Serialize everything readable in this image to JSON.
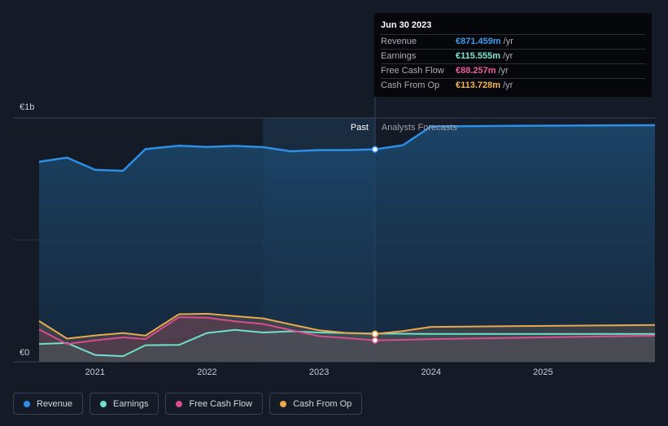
{
  "tooltip": {
    "date": "Jun 30 2023",
    "rows": [
      {
        "label": "Revenue",
        "value": "€871.459m",
        "unit": "/yr",
        "color": "#3b9ded"
      },
      {
        "label": "Earnings",
        "value": "€115.555m",
        "unit": "/yr",
        "color": "#7ee8d6"
      },
      {
        "label": "Free Cash Flow",
        "value": "€88.257m",
        "unit": "/yr",
        "color": "#ea5c9c"
      },
      {
        "label": "Cash From Op",
        "value": "€113.728m",
        "unit": "/yr",
        "color": "#f5b55c"
      }
    ]
  },
  "legend": [
    {
      "label": "Revenue",
      "color": "#2d8fe6"
    },
    {
      "label": "Earnings",
      "color": "#6fe0cc"
    },
    {
      "label": "Free Cash Flow",
      "color": "#d94c8d"
    },
    {
      "label": "Cash From Op",
      "color": "#e9a84f"
    }
  ],
  "chart_data": {
    "type": "area",
    "title": "",
    "ylabel": "",
    "xlabel": "",
    "ylim": [
      0,
      1000
    ],
    "xlim": [
      2020.5,
      2026.0
    ],
    "y_tick_labels": [
      {
        "value": 1000,
        "label": "€1b"
      },
      {
        "value": 0,
        "label": "€0"
      }
    ],
    "x_ticks": [
      {
        "value": 2021,
        "label": "2021"
      },
      {
        "value": 2022,
        "label": "2022"
      },
      {
        "value": 2023,
        "label": "2023"
      },
      {
        "value": 2024,
        "label": "2024"
      },
      {
        "value": 2025,
        "label": "2025"
      }
    ],
    "divider": {
      "x": 2023.5,
      "past_label": "Past",
      "forecast_label": "Analysts Forecasts",
      "shade_start": 2022.5
    },
    "series": [
      {
        "name": "Revenue",
        "color": "#2d8fe6",
        "points": [
          [
            2020.5,
            820
          ],
          [
            2020.75,
            837
          ],
          [
            2021.0,
            787
          ],
          [
            2021.25,
            783
          ],
          [
            2021.45,
            872
          ],
          [
            2021.75,
            886
          ],
          [
            2022.0,
            881
          ],
          [
            2022.25,
            885
          ],
          [
            2022.5,
            880
          ],
          [
            2022.75,
            863
          ],
          [
            2023.0,
            868
          ],
          [
            2023.25,
            868
          ],
          [
            2023.5,
            871
          ],
          [
            2023.75,
            888
          ],
          [
            2024.0,
            965
          ],
          [
            2025.0,
            968
          ],
          [
            2026.0,
            970
          ]
        ]
      },
      {
        "name": "Earnings",
        "color": "#6fe0cc",
        "points": [
          [
            2020.5,
            73
          ],
          [
            2020.75,
            77
          ],
          [
            2021.0,
            28
          ],
          [
            2021.25,
            23
          ],
          [
            2021.45,
            68
          ],
          [
            2021.75,
            69
          ],
          [
            2022.0,
            118
          ],
          [
            2022.25,
            131
          ],
          [
            2022.5,
            120
          ],
          [
            2022.75,
            125
          ],
          [
            2023.0,
            120
          ],
          [
            2023.25,
            118
          ],
          [
            2023.5,
            116
          ],
          [
            2023.75,
            115
          ],
          [
            2024.0,
            114
          ],
          [
            2025.0,
            114
          ],
          [
            2026.0,
            114
          ]
        ]
      },
      {
        "name": "Free Cash Flow",
        "color": "#d94c8d",
        "points": [
          [
            2020.5,
            133
          ],
          [
            2020.75,
            73
          ],
          [
            2021.0,
            88
          ],
          [
            2021.25,
            100
          ],
          [
            2021.45,
            93
          ],
          [
            2021.75,
            183
          ],
          [
            2022.0,
            181
          ],
          [
            2022.25,
            166
          ],
          [
            2022.5,
            155
          ],
          [
            2022.75,
            130
          ],
          [
            2023.0,
            105
          ],
          [
            2023.25,
            97
          ],
          [
            2023.5,
            88
          ],
          [
            2023.75,
            90
          ],
          [
            2024.0,
            93
          ],
          [
            2025.0,
            100
          ],
          [
            2026.0,
            107
          ]
        ]
      },
      {
        "name": "Cash From Op",
        "color": "#e9a84f",
        "points": [
          [
            2020.5,
            167
          ],
          [
            2020.75,
            95
          ],
          [
            2021.0,
            108
          ],
          [
            2021.25,
            118
          ],
          [
            2021.45,
            107
          ],
          [
            2021.75,
            195
          ],
          [
            2022.0,
            197
          ],
          [
            2022.25,
            187
          ],
          [
            2022.5,
            178
          ],
          [
            2022.75,
            153
          ],
          [
            2023.0,
            129
          ],
          [
            2023.25,
            118
          ],
          [
            2023.5,
            114
          ],
          [
            2023.75,
            126
          ],
          [
            2024.0,
            143
          ],
          [
            2025.0,
            147
          ],
          [
            2026.0,
            151
          ]
        ]
      }
    ]
  }
}
